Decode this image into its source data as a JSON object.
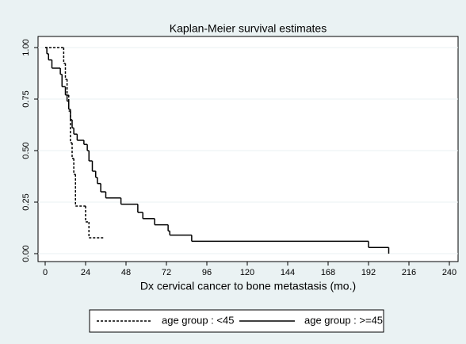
{
  "chart_data": {
    "type": "step",
    "title": "Kaplan-Meier survival estimates",
    "x_label": "Dx cervical cancer to bone metastasis (mo.)",
    "xlim": [
      0,
      240
    ],
    "xticks": [
      0,
      24,
      48,
      72,
      96,
      120,
      144,
      168,
      192,
      216,
      240
    ],
    "ylim": [
      0,
      1
    ],
    "yticks": [
      {
        "value": 0,
        "label": "0.00"
      },
      {
        "value": 0.25,
        "label": "0.25"
      },
      {
        "value": 0.5,
        "label": "0.50"
      },
      {
        "value": 0.75,
        "label": "0.75"
      },
      {
        "value": 1,
        "label": "1.00"
      }
    ],
    "grid": true,
    "series": [
      {
        "name": "age group : <45",
        "color": "#000000",
        "dash": true,
        "x": [
          0,
          11,
          12,
          13,
          14,
          15,
          16,
          17,
          18,
          24,
          26,
          35
        ],
        "values": [
          1,
          0.923,
          0.846,
          0.769,
          0.692,
          0.538,
          0.462,
          0.385,
          0.231,
          0.154,
          0.077,
          0.077
        ]
      },
      {
        "name": "age group : >=45",
        "color": "#000000",
        "dash": false,
        "x": [
          0,
          1,
          2,
          4,
          9,
          10,
          12,
          13,
          14,
          15,
          16,
          17,
          19,
          23,
          25,
          26,
          28,
          30,
          31,
          33,
          36,
          45,
          55,
          58,
          65,
          73,
          74,
          87,
          192,
          204
        ],
        "values": [
          1,
          0.97,
          0.94,
          0.9,
          0.87,
          0.81,
          0.77,
          0.74,
          0.7,
          0.65,
          0.61,
          0.58,
          0.55,
          0.53,
          0.5,
          0.45,
          0.4,
          0.37,
          0.34,
          0.3,
          0.27,
          0.24,
          0.2,
          0.17,
          0.14,
          0.11,
          0.09,
          0.06,
          0.03,
          0
        ]
      }
    ]
  }
}
